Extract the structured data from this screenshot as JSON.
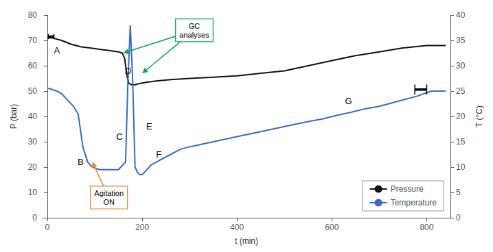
{
  "chart_data": {
    "type": "line",
    "xlabel": "t (min)",
    "ylabel": "P (bar)",
    "y2label": "T (°C)",
    "xlim": [
      -10,
      850
    ],
    "xticks": [
      0,
      200,
      400,
      600,
      800
    ],
    "ylim": [
      0,
      80
    ],
    "yticks": [
      0,
      10,
      20,
      30,
      40,
      50,
      60,
      70,
      80
    ],
    "y2lim": [
      0,
      40
    ],
    "y2ticks": [
      0,
      5,
      10,
      15,
      20,
      25,
      30,
      35,
      40
    ],
    "grid": false,
    "legend": "lower right",
    "series": [
      {
        "name": "Pressure",
        "color": "#111111",
        "x": [
          0,
          5,
          10,
          20,
          30,
          50,
          70,
          90,
          110,
          130,
          150,
          158,
          163,
          168,
          172,
          178,
          185,
          195,
          210,
          230,
          260,
          300,
          350,
          400,
          450,
          500,
          550,
          600,
          650,
          700,
          750,
          800,
          840
        ],
        "values": [
          71,
          71,
          71,
          70.5,
          70,
          68.5,
          67.5,
          67,
          66.5,
          66,
          65.5,
          65,
          63,
          56,
          53,
          52.5,
          52.5,
          53,
          53.5,
          54,
          54.5,
          55,
          55.5,
          56,
          57,
          58,
          60,
          62,
          64,
          65.5,
          67,
          68,
          68
        ]
      },
      {
        "name": "Temperature",
        "color": "#3a6bc4",
        "axis": "y2",
        "x": [
          0,
          5,
          10,
          20,
          30,
          40,
          55,
          65,
          75,
          85,
          95,
          110,
          130,
          150,
          155,
          160,
          165,
          170,
          175,
          180,
          185,
          190,
          195,
          200,
          205,
          210,
          220,
          240,
          260,
          280,
          300,
          350,
          400,
          450,
          500,
          550,
          580,
          610,
          640,
          670,
          700,
          740,
          780,
          810,
          840
        ],
        "values": [
          25.5,
          25.5,
          25.3,
          25,
          24.5,
          23.5,
          22,
          20.5,
          14,
          11,
          10,
          9.5,
          9.5,
          9.5,
          10,
          10.5,
          11,
          27,
          38,
          27,
          10,
          9,
          8.5,
          8.5,
          9,
          9.5,
          10.5,
          11.5,
          12.5,
          13.5,
          14,
          15,
          16,
          17,
          18,
          19,
          19.5,
          20.2,
          20.8,
          21.5,
          22,
          23,
          24,
          25,
          25
        ]
      }
    ],
    "annotations": [
      {
        "text": "A",
        "x": 20,
        "y": 66
      },
      {
        "text": "B",
        "x": 70,
        "y": 22
      },
      {
        "text": "C",
        "x": 152,
        "y": 32
      },
      {
        "text": "D",
        "x": 170,
        "y": 58
      },
      {
        "text": "E",
        "x": 215,
        "y": 36
      },
      {
        "text": "F",
        "x": 235,
        "y": 25
      },
      {
        "text": "G",
        "x": 635,
        "y": 46
      },
      {
        "text": "Agitation\nON",
        "x": 130,
        "y": 8,
        "color": "#e8862a",
        "arrow_to": [
          [
            95,
            22
          ]
        ]
      },
      {
        "text": "GC\nanalyses",
        "x": 310,
        "y": 74,
        "color": "#00aa55",
        "arrow_to": [
          [
            160,
            65
          ],
          [
            200,
            57
          ]
        ]
      }
    ],
    "markers": [
      {
        "x": [
          2,
          14
        ],
        "y": 71.5,
        "bar_ends": [
          70.5,
          72.5
        ]
      },
      {
        "x": [
          775,
          800
        ],
        "y": 25.3,
        "bar_ends": [
          24.3,
          26.3
        ],
        "axis": "y2"
      }
    ]
  }
}
